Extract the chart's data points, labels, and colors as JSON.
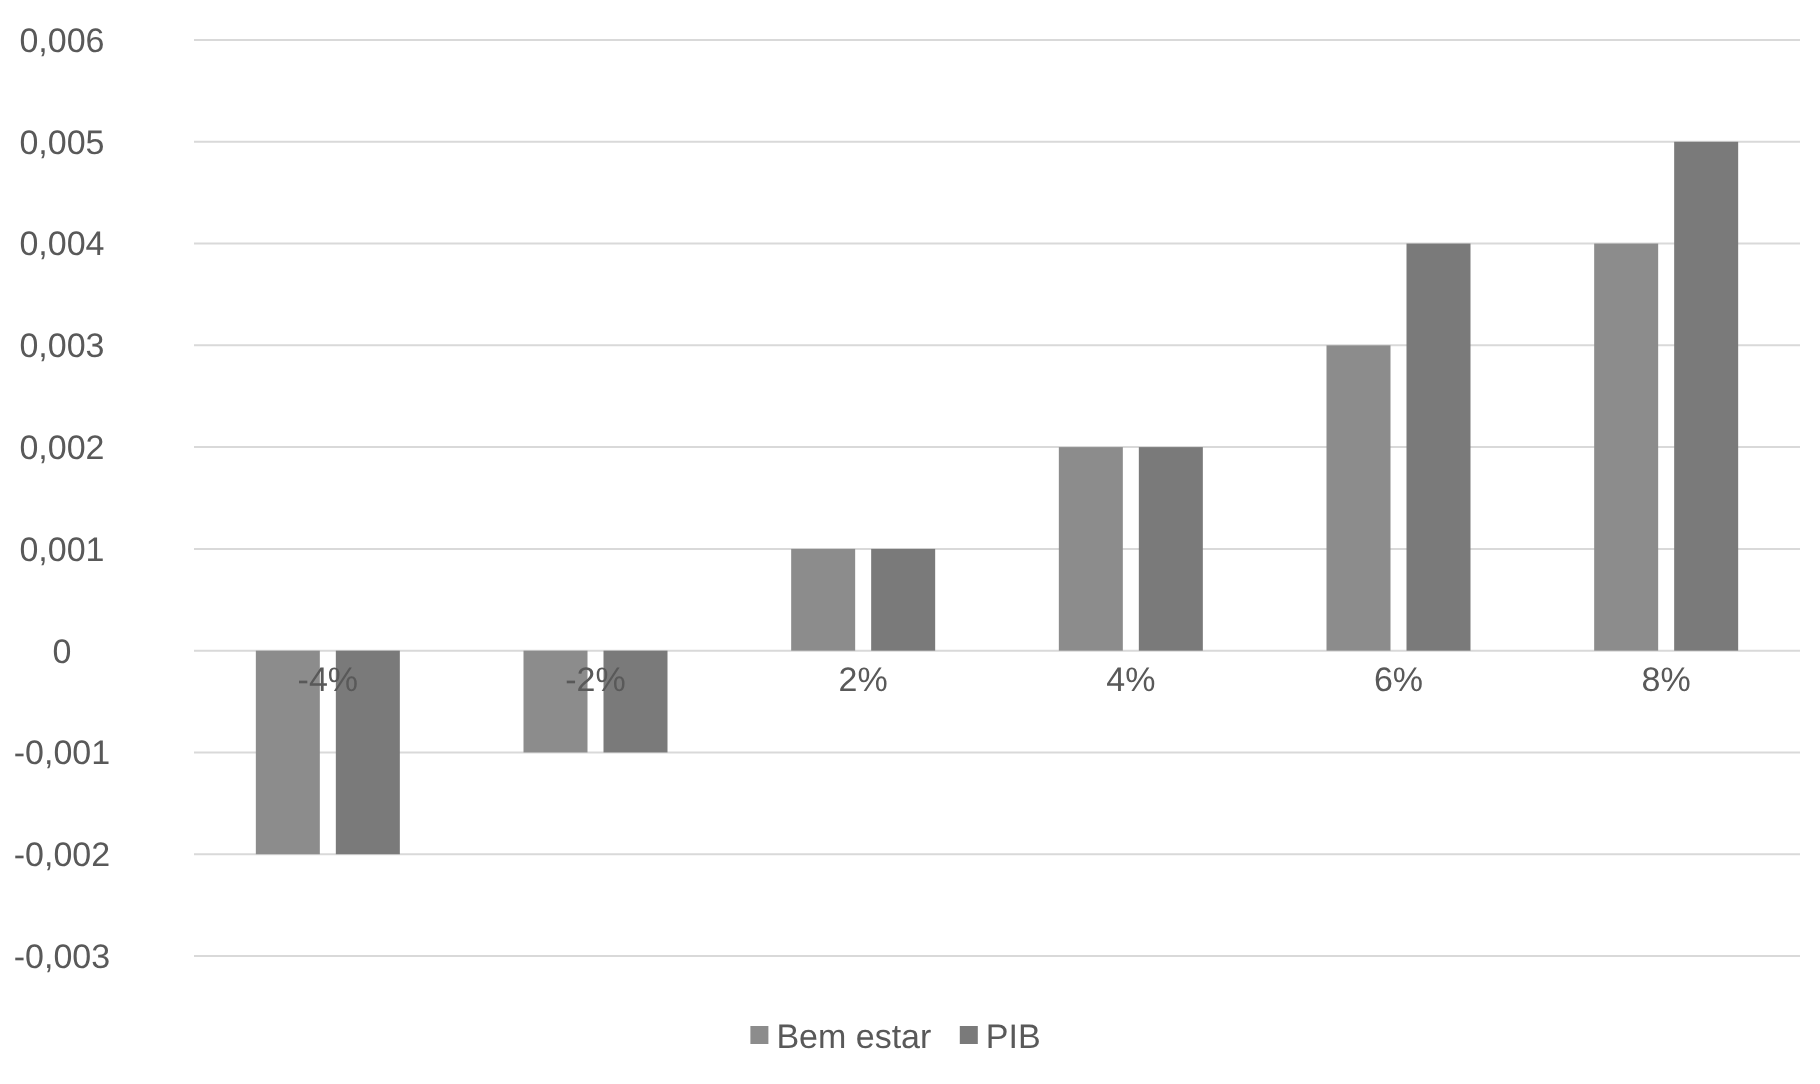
{
  "chart_data": {
    "type": "bar",
    "categories": [
      "-4%",
      "-2%",
      "2%",
      "4%",
      "6%",
      "8%"
    ],
    "series": [
      {
        "name": "Bem estar",
        "color": "#8c8c8c",
        "values": [
          -0.002,
          -0.001,
          0.001,
          0.002,
          0.003,
          0.004
        ]
      },
      {
        "name": "PIB",
        "color": "#7a7a7a",
        "values": [
          -0.002,
          -0.001,
          0.001,
          0.002,
          0.004,
          0.005
        ]
      }
    ],
    "ylim": [
      -0.003,
      0.006
    ],
    "yticks": [
      {
        "value": -0.003,
        "label": "-0,003"
      },
      {
        "value": -0.002,
        "label": "-0,002"
      },
      {
        "value": -0.001,
        "label": "-0,001"
      },
      {
        "value": 0,
        "label": "0"
      },
      {
        "value": 0.001,
        "label": "0,001"
      },
      {
        "value": 0.002,
        "label": "0,002"
      },
      {
        "value": 0.003,
        "label": "0,003"
      },
      {
        "value": 0.004,
        "label": "0,004"
      },
      {
        "value": 0.005,
        "label": "0,005"
      },
      {
        "value": 0.006,
        "label": "0,006"
      }
    ],
    "grid": "y",
    "legend": "bottom"
  }
}
